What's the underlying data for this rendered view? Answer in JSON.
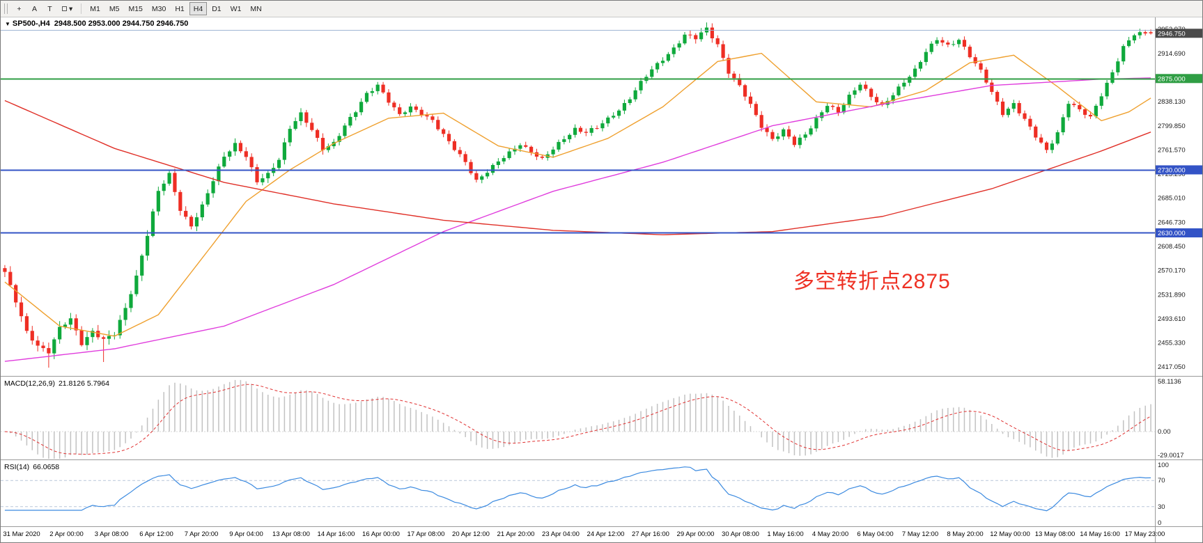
{
  "toolbar": {
    "tools": [
      {
        "id": "crosshair-tool",
        "glyph": "+"
      },
      {
        "id": "text-tool",
        "glyph": "A"
      },
      {
        "id": "text-label-tool",
        "glyph": "T"
      },
      {
        "id": "shapes-dropdown",
        "glyph": "▾",
        "swatch": true
      }
    ],
    "timeframes": [
      "M1",
      "M5",
      "M15",
      "M30",
      "H1",
      "H4",
      "D1",
      "W1",
      "MN"
    ],
    "active_timeframe": "H4"
  },
  "chart": {
    "title": {
      "symbol_tf": "SP500-,H4",
      "ohlc": "2948.500 2953.000 2944.750 2946.750"
    },
    "annotation": {
      "text": "多空转折点2875",
      "color": "#ee3124"
    },
    "price_scale": {
      "ticks": [
        "2952.970",
        "2914.690",
        "2876.410",
        "2838.130",
        "2799.850",
        "2761.570",
        "2723.290",
        "2685.010",
        "2646.730",
        "2608.450",
        "2570.170",
        "2531.890",
        "2493.610",
        "2455.330",
        "2417.050"
      ],
      "current": {
        "value": "2946.750",
        "price": 2946.75,
        "bg": "#4a4a4a"
      }
    }
  },
  "chart_data": {
    "type": "candlestick",
    "symbol": "SP500-",
    "timeframe": "H4",
    "bars": 210,
    "price_range": [
      2404,
      2972
    ],
    "anchor_step": 2,
    "anchor_closes": [
      2568,
      2520,
      2472,
      2452,
      2442,
      2478,
      2492,
      2455,
      2475,
      2460,
      2468,
      2510,
      2562,
      2628,
      2695,
      2722,
      2668,
      2642,
      2672,
      2712,
      2752,
      2772,
      2752,
      2710,
      2722,
      2748,
      2798,
      2818,
      2792,
      2764,
      2774,
      2800,
      2822,
      2850,
      2866,
      2840,
      2816,
      2828,
      2820,
      2810,
      2785,
      2762,
      2742,
      2714,
      2728,
      2742,
      2756,
      2772,
      2760,
      2746,
      2762,
      2780,
      2796,
      2790,
      2796,
      2810,
      2826,
      2845,
      2868,
      2888,
      2906,
      2924,
      2944,
      2938,
      2954,
      2930,
      2886,
      2862,
      2832,
      2800,
      2780,
      2792,
      2770,
      2786,
      2812,
      2834,
      2820,
      2846,
      2868,
      2848,
      2830,
      2848,
      2870,
      2890,
      2918,
      2936,
      2926,
      2938,
      2912,
      2886,
      2852,
      2820,
      2836,
      2810,
      2782,
      2760,
      2790,
      2838,
      2824,
      2812,
      2850,
      2886,
      2924,
      2944,
      2946.75
    ],
    "wick_overrides": {
      "8": {
        "low": 2416
      },
      "18": {
        "low": 2425
      },
      "128": {
        "high": 2964
      }
    },
    "last_bar": {
      "open": 2948.5,
      "high": 2953.0,
      "low": 2944.75,
      "close": 2946.75
    },
    "up_color": "#0fa93c",
    "down_color": "#ee2e24",
    "overlays": [
      {
        "name": "ma-fast-orange",
        "color": "#efa02e",
        "anchors": [
          [
            0,
            2552
          ],
          [
            10,
            2482
          ],
          [
            20,
            2466
          ],
          [
            28,
            2500
          ],
          [
            36,
            2590
          ],
          [
            44,
            2680
          ],
          [
            52,
            2730
          ],
          [
            60,
            2772
          ],
          [
            70,
            2812
          ],
          [
            80,
            2820
          ],
          [
            90,
            2768
          ],
          [
            100,
            2750
          ],
          [
            110,
            2780
          ],
          [
            120,
            2830
          ],
          [
            130,
            2902
          ],
          [
            138,
            2915
          ],
          [
            148,
            2838
          ],
          [
            158,
            2830
          ],
          [
            168,
            2856
          ],
          [
            176,
            2900
          ],
          [
            184,
            2912
          ],
          [
            192,
            2862
          ],
          [
            200,
            2808
          ],
          [
            205,
            2822
          ],
          [
            209,
            2844
          ]
        ]
      },
      {
        "name": "ma-mid-magenta",
        "color": "#e03ddd",
        "anchors": [
          [
            0,
            2426
          ],
          [
            20,
            2446
          ],
          [
            40,
            2482
          ],
          [
            60,
            2548
          ],
          [
            80,
            2632
          ],
          [
            100,
            2696
          ],
          [
            120,
            2742
          ],
          [
            140,
            2800
          ],
          [
            160,
            2834
          ],
          [
            180,
            2864
          ],
          [
            200,
            2874
          ],
          [
            209,
            2876
          ]
        ]
      },
      {
        "name": "ma-slow-red",
        "color": "#e03028",
        "anchors": [
          [
            0,
            2840
          ],
          [
            20,
            2764
          ],
          [
            40,
            2710
          ],
          [
            60,
            2676
          ],
          [
            80,
            2650
          ],
          [
            100,
            2634
          ],
          [
            120,
            2627
          ],
          [
            140,
            2632
          ],
          [
            160,
            2656
          ],
          [
            180,
            2700
          ],
          [
            200,
            2760
          ],
          [
            209,
            2790
          ]
        ]
      }
    ],
    "hlines": [
      {
        "price": 2952.5,
        "color": "#9fb6d4",
        "width": 1
      },
      {
        "price": 2875.0,
        "color": "#2f9e44",
        "width": 2,
        "label": "2875.000",
        "badge": "#2f9e44"
      },
      {
        "price": 2730.0,
        "color": "#3353c6",
        "width": 2,
        "label": "2730.000",
        "badge": "#3353c6"
      },
      {
        "price": 2630.0,
        "color": "#3353c6",
        "width": 2,
        "label": "2630.000",
        "badge": "#3353c6"
      }
    ],
    "x_labels": [
      "31 Mar 2020",
      "2 Apr 00:00",
      "3 Apr 08:00",
      "6 Apr 12:00",
      "7 Apr 20:00",
      "9 Apr 04:00",
      "13 Apr 08:00",
      "14 Apr 16:00",
      "16 Apr 00:00",
      "17 Apr 08:00",
      "20 Apr 12:00",
      "21 Apr 20:00",
      "23 Apr 04:00",
      "24 Apr 12:00",
      "27 Apr 16:00",
      "29 Apr 00:00",
      "30 Apr 08:00",
      "1 May 16:00",
      "4 May 20:00",
      "6 May 04:00",
      "7 May 12:00",
      "8 May 20:00",
      "12 May 00:00",
      "13 May 08:00",
      "14 May 16:00",
      "17 May 23:00"
    ],
    "indicators": {
      "macd": {
        "label": "MACD(12,26,9)",
        "display_values": "21.8126 5.7964",
        "params": [
          12,
          26,
          9
        ],
        "range": [
          -29.0017,
          58.1136
        ],
        "scale_ticks": [
          "58.1136",
          "0.00",
          "-29.0017"
        ],
        "histogram_color": "#c2c2c2",
        "signal_color": "#e03131"
      },
      "rsi": {
        "label": "RSI(14)",
        "display_value": "66.0658",
        "period": 14,
        "levels": [
          70,
          30
        ],
        "scale_ticks": [
          100,
          70,
          30,
          0
        ],
        "line_color": "#3b8ae0",
        "level_color": "#b9c5d9"
      }
    }
  }
}
